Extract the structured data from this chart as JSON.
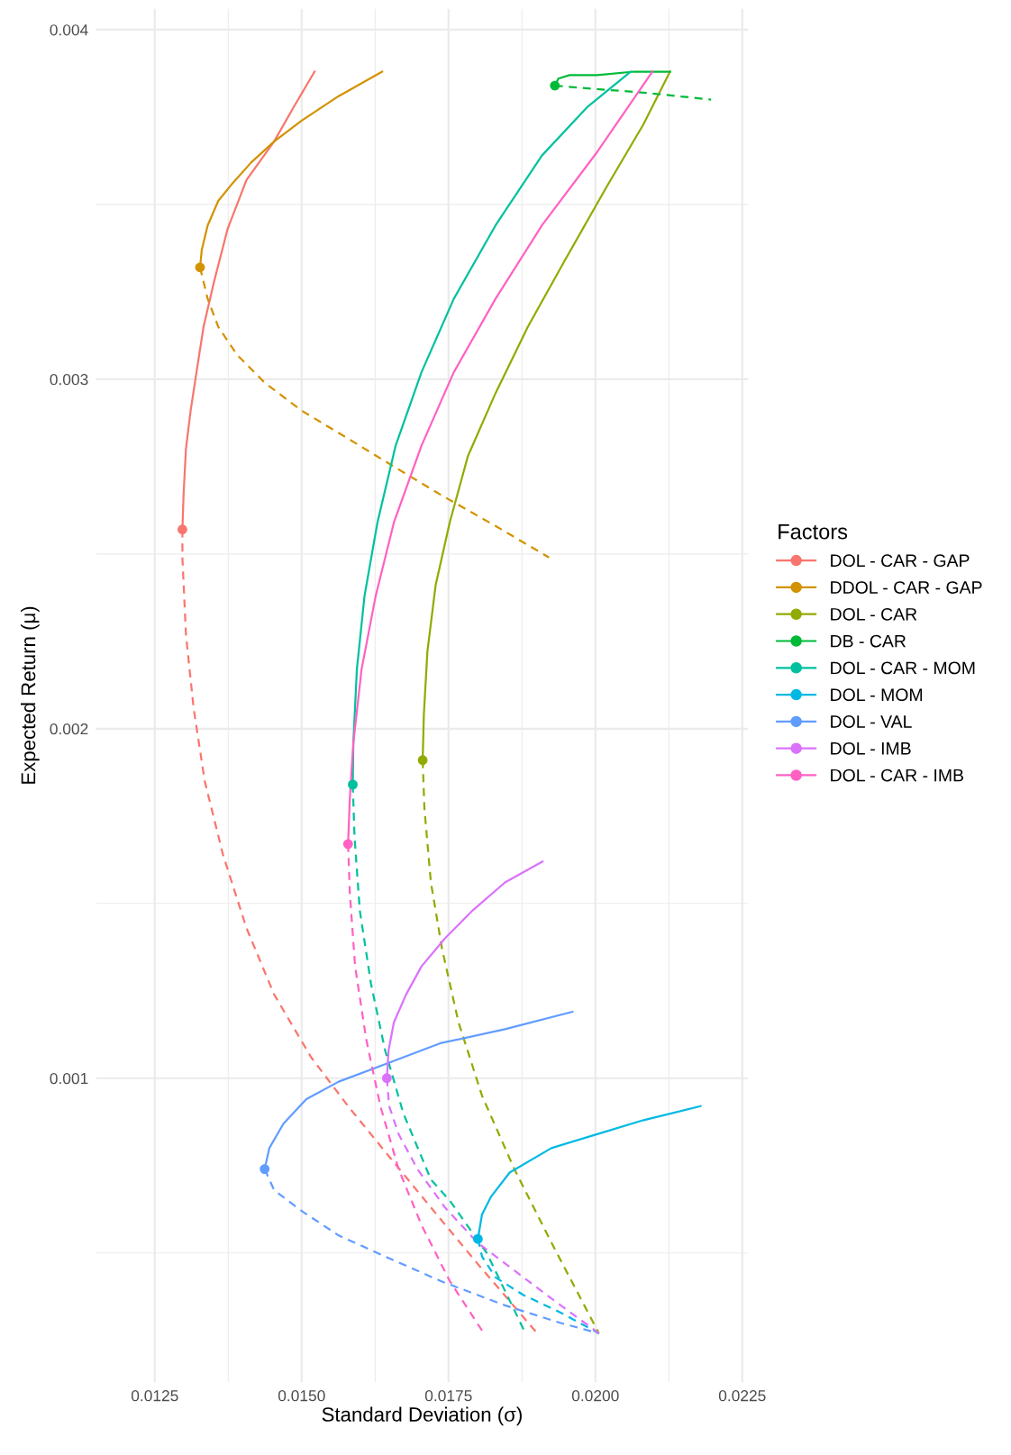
{
  "chart_data": {
    "type": "line",
    "xlabel": "Standard Deviation (σ)",
    "ylabel": "Expected Return (μ)",
    "legend_title": "Factors",
    "legend": "right",
    "grid": true,
    "xlim": [
      0.0115,
      0.0226
    ],
    "ylim": [
      0.00013,
      0.00406
    ],
    "xticks": [
      0.0125,
      {
        "value": 0.015,
        "label": "0.0150"
      },
      0.0175,
      {
        "value": 0.02,
        "label": "0.0200"
      },
      0.0225
    ],
    "yticks": [
      0.001,
      0.002,
      0.003,
      0.004
    ],
    "series": [
      {
        "name": "DOL - CAR - GAP",
        "color": "#F8766D",
        "line_style": "solid",
        "x": [
          0.01297,
          0.01299,
          0.01303,
          0.01311,
          0.01321,
          0.01333,
          0.01351,
          0.01374,
          0.01406,
          0.01453,
          0.01487,
          0.01522
        ],
        "values": [
          0.00257,
          0.00267,
          0.0028,
          0.00291,
          0.00302,
          0.00315,
          0.00328,
          0.00343,
          0.00357,
          0.00368,
          0.00378,
          0.00388
        ]
      },
      {
        "color": "#F8766D",
        "line_style": "dashed",
        "x": [
          0.01297,
          0.01297,
          0.01303,
          0.01316,
          0.01335,
          0.01366,
          0.01406,
          0.01453,
          0.01516,
          0.01579,
          0.01642,
          0.0172,
          0.01799,
          0.01901
        ],
        "values": [
          0.00257,
          0.00249,
          0.00227,
          0.00206,
          0.00185,
          0.00164,
          0.00143,
          0.00124,
          0.00106,
          0.00092,
          0.00079,
          0.00063,
          0.00047,
          0.00027
        ]
      },
      {
        "color": "#F8766D",
        "type": "scatter",
        "marker": "circle",
        "x": [
          0.01297
        ],
        "values": [
          0.00257
        ]
      },
      {
        "name": "DDOL - CAR - GAP",
        "color": "#D39200",
        "line_style": "solid",
        "x": [
          0.01327,
          0.0133,
          0.0134,
          0.01358,
          0.01382,
          0.01414,
          0.01453,
          0.015,
          0.01563,
          0.01637
        ],
        "values": [
          0.00332,
          0.00337,
          0.00344,
          0.00351,
          0.00356,
          0.00362,
          0.00368,
          0.00374,
          0.00381,
          0.00388
        ]
      },
      {
        "color": "#D39200",
        "line_style": "dashed",
        "x": [
          0.01327,
          0.0134,
          0.01358,
          0.0139,
          0.01437,
          0.015,
          0.01579,
          0.01657,
          0.01736,
          0.0183,
          0.01921
        ],
        "values": [
          0.00332,
          0.00323,
          0.00315,
          0.00307,
          0.00299,
          0.00291,
          0.00283,
          0.00275,
          0.00267,
          0.00258,
          0.00249
        ]
      },
      {
        "color": "#D39200",
        "type": "scatter",
        "marker": "circle",
        "x": [
          0.01327
        ],
        "values": [
          0.00332
        ]
      },
      {
        "name": "DOL - CAR",
        "color": "#93AA00",
        "line_style": "solid",
        "x": [
          0.01706,
          0.01708,
          0.01714,
          0.01728,
          0.01752,
          0.01783,
          0.0183,
          0.01885,
          0.01948,
          0.02019,
          0.02082,
          0.02127
        ],
        "values": [
          0.00191,
          0.00204,
          0.00222,
          0.00241,
          0.00259,
          0.00278,
          0.00296,
          0.00315,
          0.00334,
          0.00355,
          0.00373,
          0.00388
        ]
      },
      {
        "color": "#93AA00",
        "line_style": "dashed",
        "x": [
          0.01706,
          0.01709,
          0.0172,
          0.01739,
          0.01767,
          0.01807,
          0.01862,
          0.01925,
          0.02006
        ],
        "values": [
          0.00191,
          0.00177,
          0.00156,
          0.00137,
          0.00116,
          0.00095,
          0.00074,
          0.00053,
          0.00027
        ]
      },
      {
        "color": "#93AA00",
        "type": "scatter",
        "marker": "circle",
        "x": [
          0.01706
        ],
        "values": [
          0.00191
        ]
      },
      {
        "name": "DB - CAR",
        "color": "#00BA38",
        "line_style": "solid",
        "x": [
          0.01931,
          0.01937,
          0.01956,
          0.02003,
          0.02066,
          0.02127
        ],
        "values": [
          0.00384,
          0.00386,
          0.00387,
          0.00387,
          0.00388,
          0.00388
        ]
      },
      {
        "color": "#00BA38",
        "line_style": "dashed",
        "x": [
          0.01931,
          0.02003,
          0.02082,
          0.02197
        ],
        "values": [
          0.00384,
          0.00383,
          0.00382,
          0.0038
        ]
      },
      {
        "color": "#00BA38",
        "type": "scatter",
        "marker": "circle",
        "x": [
          0.01931
        ],
        "values": [
          0.00384
        ]
      },
      {
        "name": "DOL - CAR - MOM",
        "color": "#00C19F",
        "line_style": "solid",
        "x": [
          0.01587,
          0.01588,
          0.01594,
          0.01607,
          0.01629,
          0.0166,
          0.01704,
          0.01759,
          0.0183,
          0.01909,
          0.01987,
          0.0206
        ],
        "values": [
          0.00184,
          0.00196,
          0.00217,
          0.00238,
          0.00259,
          0.00281,
          0.00302,
          0.00323,
          0.00344,
          0.00364,
          0.00378,
          0.00388
        ]
      },
      {
        "color": "#00C19F",
        "line_style": "dashed",
        "x": [
          0.01587,
          0.0159,
          0.01599,
          0.01618,
          0.01642,
          0.01673,
          0.0172,
          0.01752,
          0.01815,
          0.01881
        ],
        "values": [
          0.00184,
          0.00169,
          0.00148,
          0.00127,
          0.00108,
          0.0009,
          0.00071,
          0.00065,
          0.0005,
          0.00027
        ]
      },
      {
        "color": "#00C19F",
        "type": "scatter",
        "marker": "circle",
        "x": [
          0.01587
        ],
        "values": [
          0.00184
        ]
      },
      {
        "name": "DOL - MOM",
        "color": "#00B9E3",
        "line_style": "solid",
        "x": [
          0.018,
          0.01807,
          0.01822,
          0.01854,
          0.01925,
          0.02003,
          0.02082,
          0.02179
        ],
        "values": [
          0.00054,
          0.00061,
          0.00066,
          0.00073,
          0.0008,
          0.00084,
          0.00088,
          0.00092
        ]
      },
      {
        "color": "#00B9E3",
        "line_style": "dashed",
        "x": [
          0.018,
          0.01807,
          0.0183,
          0.01877,
          0.0194,
          0.02006
        ],
        "values": [
          0.00054,
          0.00049,
          0.00043,
          0.00038,
          0.00033,
          0.00027
        ]
      },
      {
        "color": "#00B9E3",
        "type": "scatter",
        "marker": "circle",
        "x": [
          0.018
        ],
        "values": [
          0.00054
        ]
      },
      {
        "name": "DOL - VAL",
        "color": "#619CFF",
        "line_style": "solid",
        "x": [
          0.01437,
          0.01445,
          0.01469,
          0.01508,
          0.01563,
          0.01642,
          0.01736,
          0.01846,
          0.01961
        ],
        "values": [
          0.00074,
          0.0008,
          0.00087,
          0.00094,
          0.00099,
          0.00104,
          0.0011,
          0.00114,
          0.00119
        ]
      },
      {
        "color": "#619CFF",
        "line_style": "dashed",
        "x": [
          0.01437,
          0.01453,
          0.015,
          0.01563,
          0.01642,
          0.01736,
          0.01846,
          0.0194,
          0.02006
        ],
        "values": [
          0.00074,
          0.00068,
          0.00062,
          0.00055,
          0.00049,
          0.00042,
          0.00035,
          0.0003,
          0.00027
        ]
      },
      {
        "color": "#619CFF",
        "type": "scatter",
        "marker": "circle",
        "x": [
          0.01437
        ],
        "values": [
          0.00074
        ]
      },
      {
        "name": "DOL - IMB",
        "color": "#DB72FB",
        "line_style": "solid",
        "x": [
          0.01645,
          0.01648,
          0.01657,
          0.01678,
          0.01704,
          0.01744,
          0.01791,
          0.01846,
          0.0191
        ],
        "values": [
          0.001,
          0.00108,
          0.00116,
          0.00124,
          0.00132,
          0.0014,
          0.00148,
          0.00156,
          0.00162
        ]
      },
      {
        "color": "#DB72FB",
        "line_style": "dashed",
        "x": [
          0.01645,
          0.01649,
          0.01665,
          0.01697,
          0.01744,
          0.01799,
          0.01862,
          0.01925,
          0.02006
        ],
        "values": [
          0.001,
          0.00092,
          0.00084,
          0.00074,
          0.00063,
          0.00053,
          0.00045,
          0.00037,
          0.00027
        ]
      },
      {
        "color": "#DB72FB",
        "type": "scatter",
        "marker": "circle",
        "x": [
          0.01645
        ],
        "values": [
          0.001
        ]
      },
      {
        "name": "DOL - CAR - IMB",
        "color": "#FF61C3",
        "line_style": "solid",
        "x": [
          0.01579,
          0.01582,
          0.01588,
          0.01602,
          0.01626,
          0.01657,
          0.01704,
          0.01759,
          0.0183,
          0.01909,
          0.02003,
          0.02097
        ],
        "values": [
          0.00167,
          0.0018,
          0.00196,
          0.00217,
          0.00238,
          0.00259,
          0.00281,
          0.00302,
          0.00323,
          0.00344,
          0.00365,
          0.00388
        ]
      },
      {
        "color": "#FF61C3",
        "line_style": "dashed",
        "x": [
          0.01579,
          0.01582,
          0.01591,
          0.0161,
          0.01634,
          0.01665,
          0.01704,
          0.01752,
          0.0181
        ],
        "values": [
          0.00167,
          0.00153,
          0.00132,
          0.00111,
          0.00092,
          0.00074,
          0.00058,
          0.00042,
          0.00027
        ]
      },
      {
        "color": "#FF61C3",
        "type": "scatter",
        "marker": "circle",
        "x": [
          0.01579
        ],
        "values": [
          0.00167
        ]
      }
    ]
  }
}
